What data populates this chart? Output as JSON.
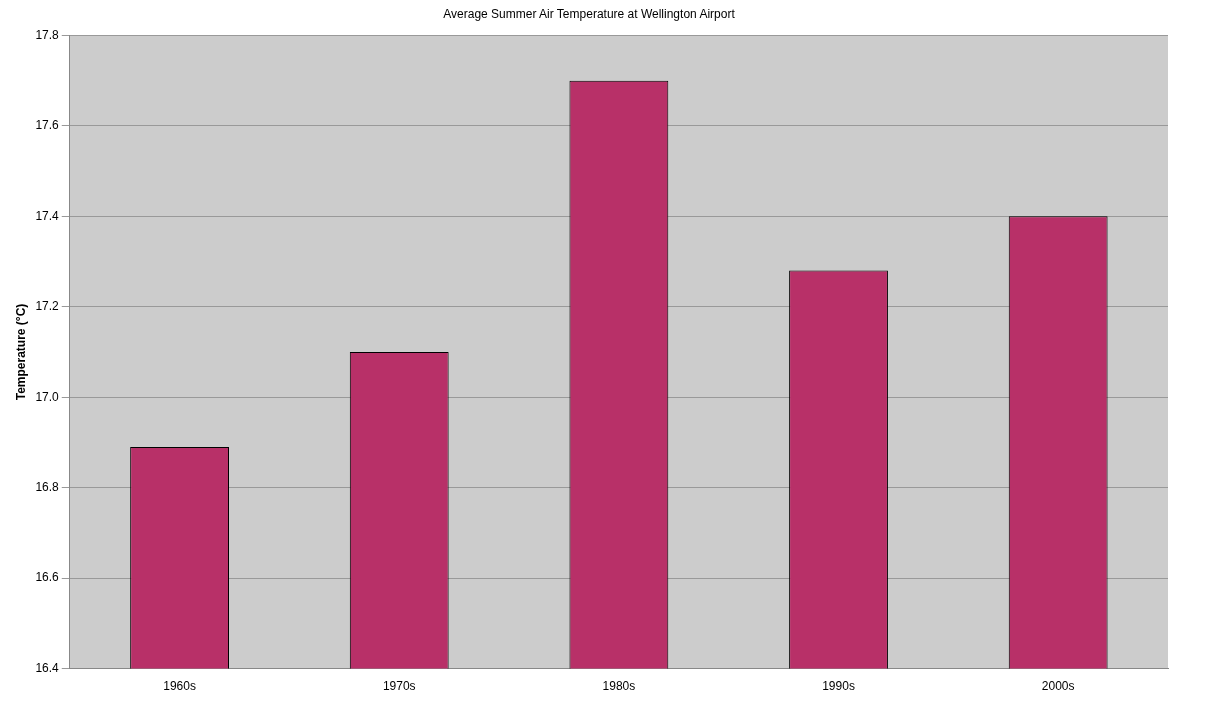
{
  "chart_data": {
    "type": "bar",
    "title": "Average Summer Air Temperature at Wellington Airport",
    "ylabel": "Temperature (°C)",
    "categories": [
      "1960s",
      "1970s",
      "1980s",
      "1990s",
      "2000s"
    ],
    "values": [
      16.89,
      17.1,
      17.7,
      17.28,
      17.4
    ],
    "color": "#b83068",
    "ylim": [
      16.4,
      17.8
    ],
    "yticks": [
      16.4,
      16.6,
      16.8,
      {
        "value": 17,
        "label": "17.0"
      },
      17.2,
      17.4,
      17.6,
      17.8
    ],
    "grid": "y",
    "legend": false
  }
}
